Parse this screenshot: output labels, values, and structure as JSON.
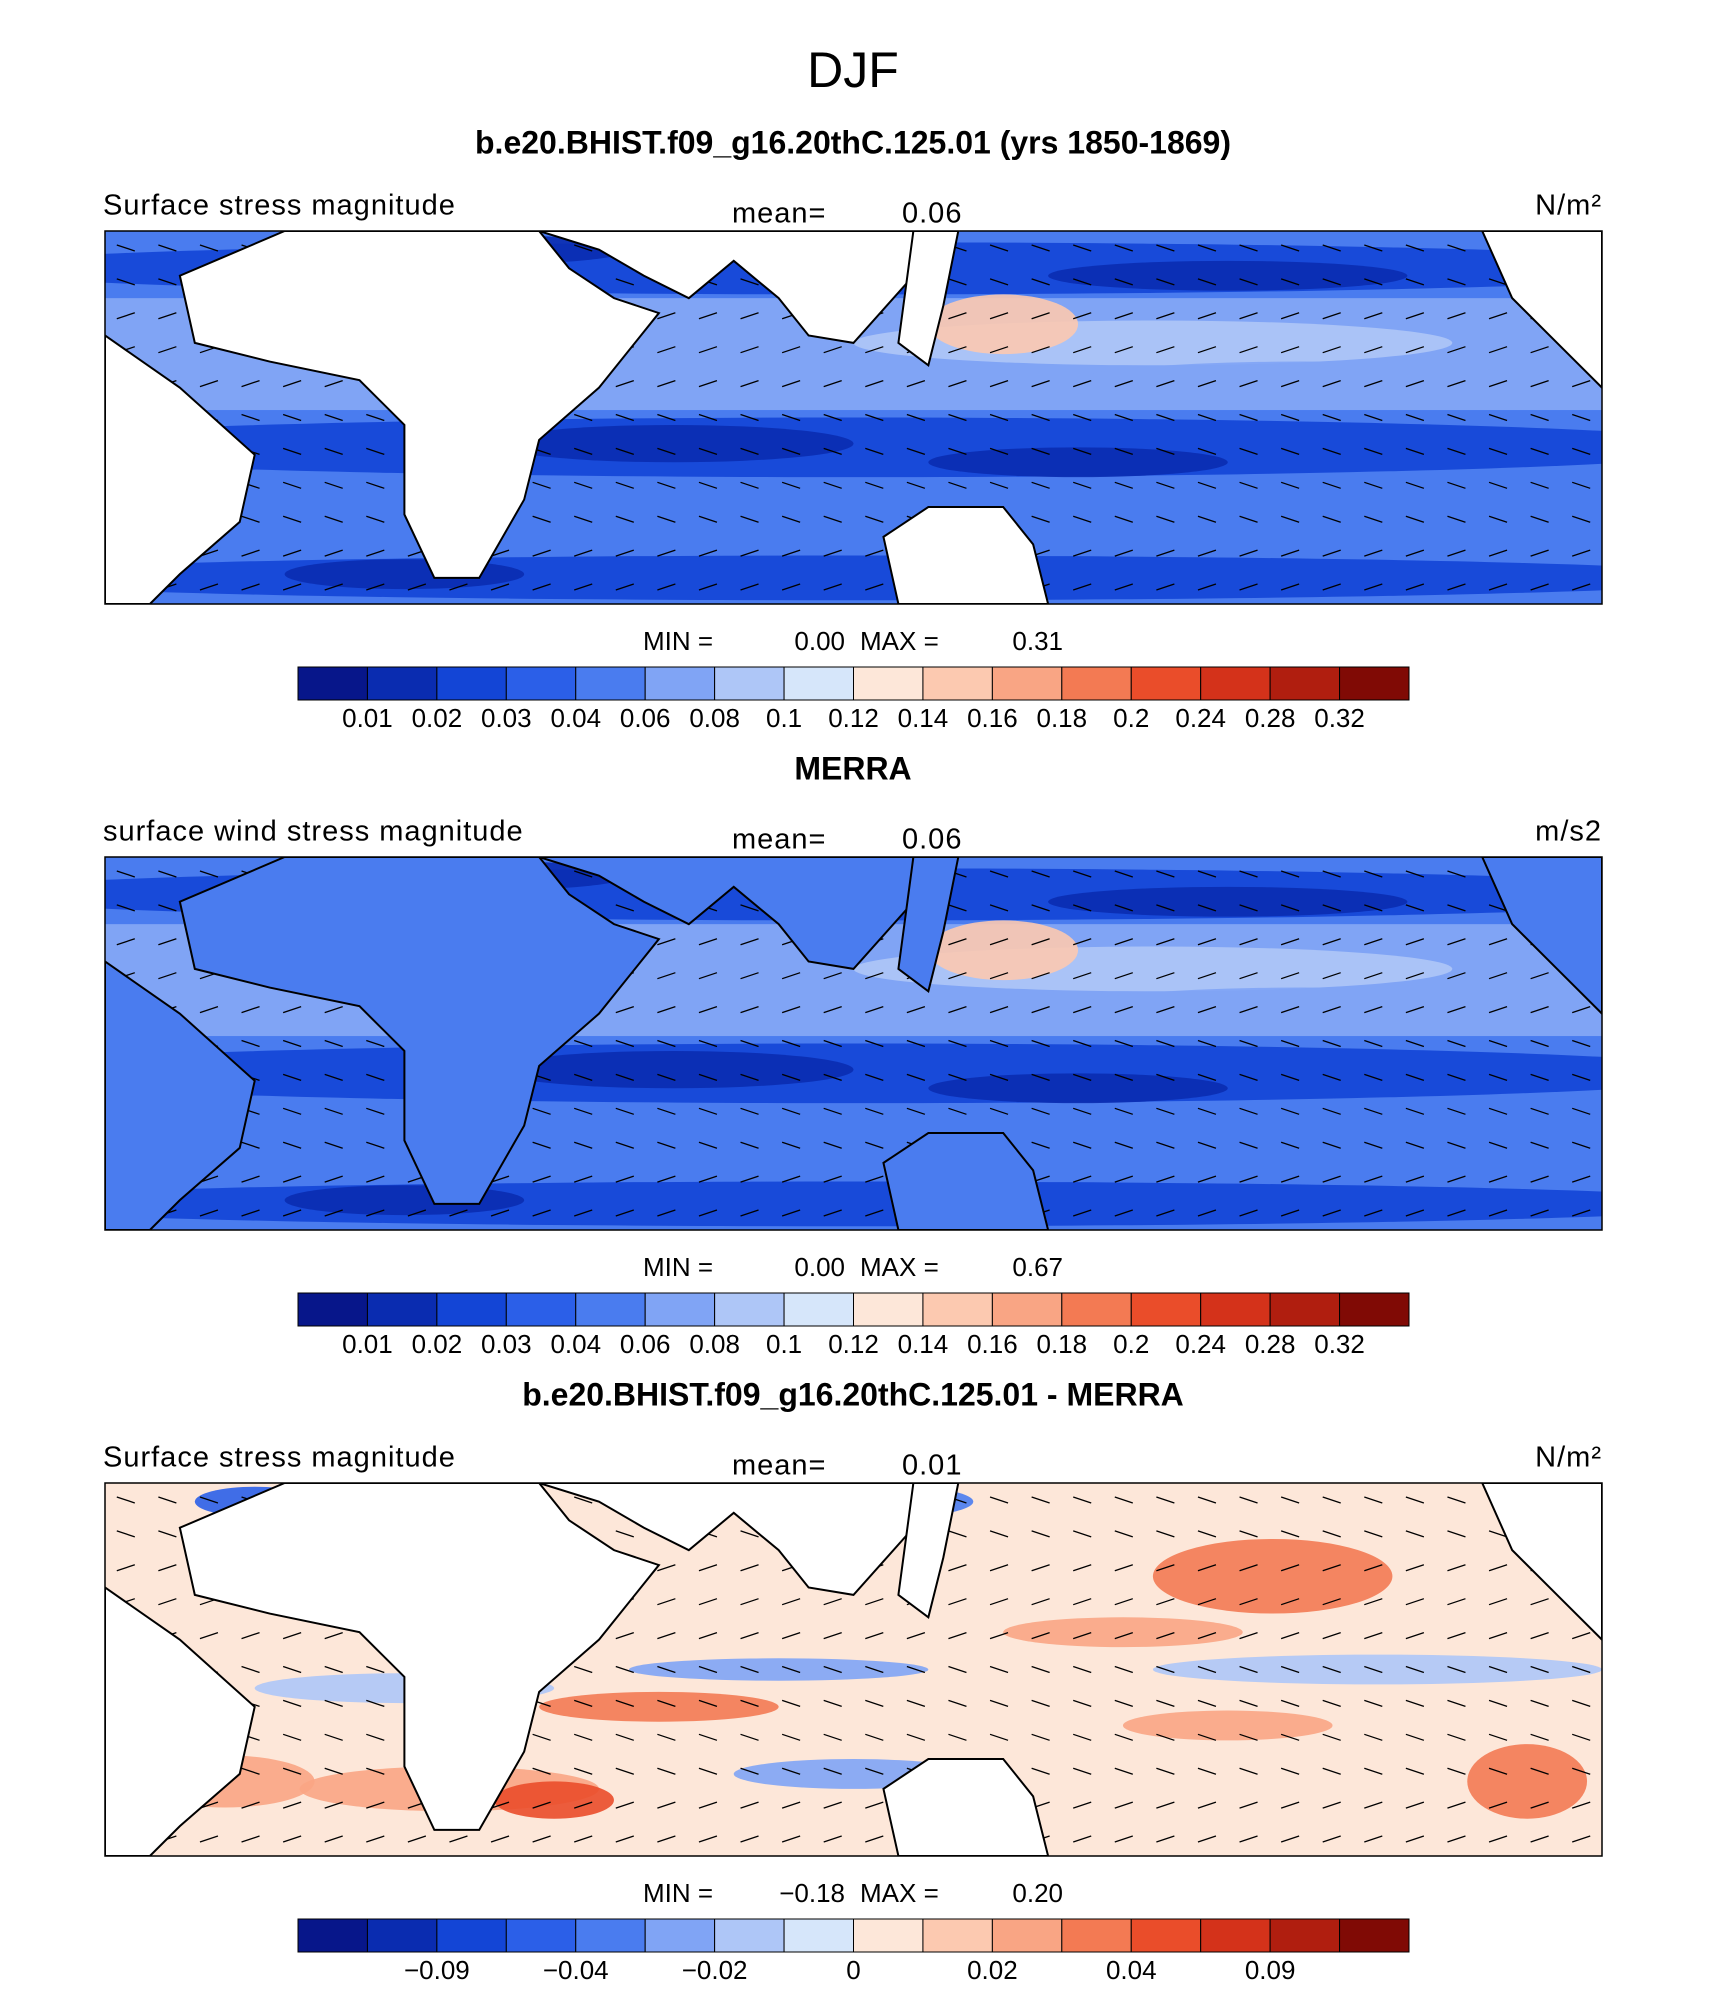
{
  "title": "DJF",
  "panels": [
    {
      "title": "b.e20.BHIST.f09_g16.20thC.125.01 (yrs 1850-1869)",
      "field": "Surface stress magnitude",
      "mean_label": "mean=",
      "mean": "0.06",
      "units": "N/m²",
      "min_label": "MIN =",
      "min": "0.00",
      "max_label": "MAX =",
      "max": "0.31",
      "colorbar": {
        "colors": [
          "#07168a",
          "#0a2cb0",
          "#1345d6",
          "#2b5fe8",
          "#4a7cef",
          "#80a4f5",
          "#aec6f7",
          "#d6e6fa",
          "#fde7d9",
          "#fcc9b0",
          "#f9a584",
          "#f37a53",
          "#ea4d2a",
          "#d4321a",
          "#b01e0f",
          "#800a05"
        ],
        "labels": [
          "0.01",
          "0.02",
          "0.03",
          "0.04",
          "0.06",
          "0.08",
          "0.1",
          "0.12",
          "0.14",
          "0.16",
          "0.18",
          "0.2",
          "0.24",
          "0.28",
          "0.32"
        ]
      }
    },
    {
      "title": "MERRA",
      "field": "surface wind stress magnitude",
      "mean_label": "mean=",
      "mean": "0.06",
      "units": "m/s2",
      "min_label": "MIN =",
      "min": "0.00",
      "max_label": "MAX =",
      "max": "0.67",
      "colorbar": {
        "colors": [
          "#07168a",
          "#0a2cb0",
          "#1345d6",
          "#2b5fe8",
          "#4a7cef",
          "#80a4f5",
          "#aec6f7",
          "#d6e6fa",
          "#fde7d9",
          "#fcc9b0",
          "#f9a584",
          "#f37a53",
          "#ea4d2a",
          "#d4321a",
          "#b01e0f",
          "#800a05"
        ],
        "labels": [
          "0.01",
          "0.02",
          "0.03",
          "0.04",
          "0.06",
          "0.08",
          "0.1",
          "0.12",
          "0.14",
          "0.16",
          "0.18",
          "0.2",
          "0.24",
          "0.28",
          "0.32"
        ]
      }
    },
    {
      "title": "b.e20.BHIST.f09_g16.20thC.125.01 - MERRA",
      "field": "Surface stress magnitude",
      "mean_label": "mean=",
      "mean": "0.01",
      "units": "N/m²",
      "min_label": "MIN =",
      "min": "−0.18",
      "max_label": "MAX =",
      "max": "0.20",
      "colorbar": {
        "colors": [
          "#07168a",
          "#0a2cb0",
          "#1345d6",
          "#2b5fe8",
          "#4a7cef",
          "#80a4f5",
          "#aec6f7",
          "#d6e6fa",
          "#fde7d9",
          "#fcc9b0",
          "#f9a584",
          "#f37a53",
          "#ea4d2a",
          "#d4321a",
          "#b01e0f",
          "#800a05"
        ],
        "labels": [
          null,
          "−0.09",
          null,
          "−0.04",
          null,
          "−0.02",
          null,
          "0",
          null,
          "0.02",
          null,
          "0.04",
          null,
          "0.09",
          null
        ]
      }
    }
  ]
}
